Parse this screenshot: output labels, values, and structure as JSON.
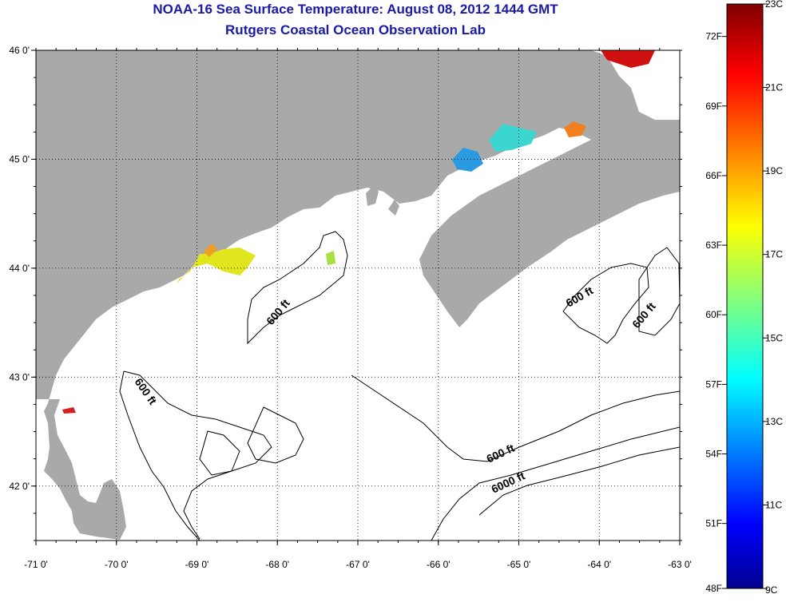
{
  "header": {
    "title": "NOAA-16 Sea Surface Temperature:  August 08, 2012 1444 GMT",
    "subtitle": "Rutgers Coastal Ocean Observation Lab"
  },
  "map": {
    "lon_range": [
      -71,
      -63
    ],
    "lat_range": [
      41.5,
      46
    ],
    "lon_ticks": [
      "-71 0'",
      "-70 0'",
      "-69 0'",
      "-68 0'",
      "-67 0'",
      "-66 0'",
      "-65 0'",
      "-64 0'",
      "-63 0'"
    ],
    "lat_ticks": [
      "46 0'",
      "45 0'",
      "44 0'",
      "43 0'",
      "42 0'"
    ],
    "grid": "dotted",
    "land_color": "#a9a9a9",
    "water_color": "#ffffff",
    "contour_labels": [
      "600 ft",
      "600 ft",
      "600 ft",
      "600 ft",
      "600 ft",
      "6000 ft"
    ]
  },
  "colorbar": {
    "celsius_labels": [
      "23C",
      "21C",
      "19C",
      "17C",
      "15C",
      "13C",
      "11C",
      "9C"
    ],
    "fahrenheit_labels": [
      "72F",
      "69F",
      "66F",
      "63F",
      "60F",
      "57F",
      "54F",
      "51F",
      "48F"
    ],
    "range_c": [
      9,
      23
    ],
    "colormap": "jet"
  }
}
